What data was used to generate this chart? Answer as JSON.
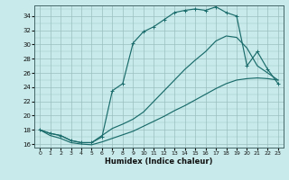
{
  "title": "",
  "xlabel": "Humidex (Indice chaleur)",
  "ylabel": "",
  "bg_color": "#c8eaea",
  "grid_color": "#9bbfbf",
  "line_color": "#1a6b6b",
  "xlim": [
    -0.5,
    23.5
  ],
  "ylim": [
    15.5,
    35.5
  ],
  "xticks": [
    0,
    1,
    2,
    3,
    4,
    5,
    6,
    7,
    8,
    9,
    10,
    11,
    12,
    13,
    14,
    15,
    16,
    17,
    18,
    19,
    20,
    21,
    22,
    23
  ],
  "yticks": [
    16,
    18,
    20,
    22,
    24,
    26,
    28,
    30,
    32,
    34
  ],
  "line1_y": [
    18.0,
    17.5,
    17.2,
    16.5,
    16.2,
    16.2,
    17.0,
    23.5,
    24.5,
    30.2,
    31.8,
    32.5,
    33.5,
    34.5,
    34.8,
    35.0,
    34.8,
    35.3,
    34.5,
    34.0,
    27.0,
    29.0,
    26.5,
    24.5
  ],
  "line2_y": [
    18.0,
    17.5,
    17.2,
    16.5,
    16.2,
    16.2,
    17.2,
    18.2,
    18.8,
    19.5,
    20.5,
    22.0,
    23.5,
    25.0,
    26.5,
    27.8,
    29.0,
    30.5,
    31.2,
    31.0,
    29.5,
    27.0,
    26.0,
    25.0
  ],
  "line3_y": [
    18.0,
    17.2,
    16.8,
    16.2,
    16.0,
    15.9,
    16.3,
    16.8,
    17.3,
    17.8,
    18.5,
    19.2,
    19.9,
    20.7,
    21.4,
    22.2,
    23.0,
    23.8,
    24.5,
    25.0,
    25.2,
    25.3,
    25.2,
    25.0
  ],
  "xlabel_fontsize": 6,
  "tick_fontsize": 5
}
